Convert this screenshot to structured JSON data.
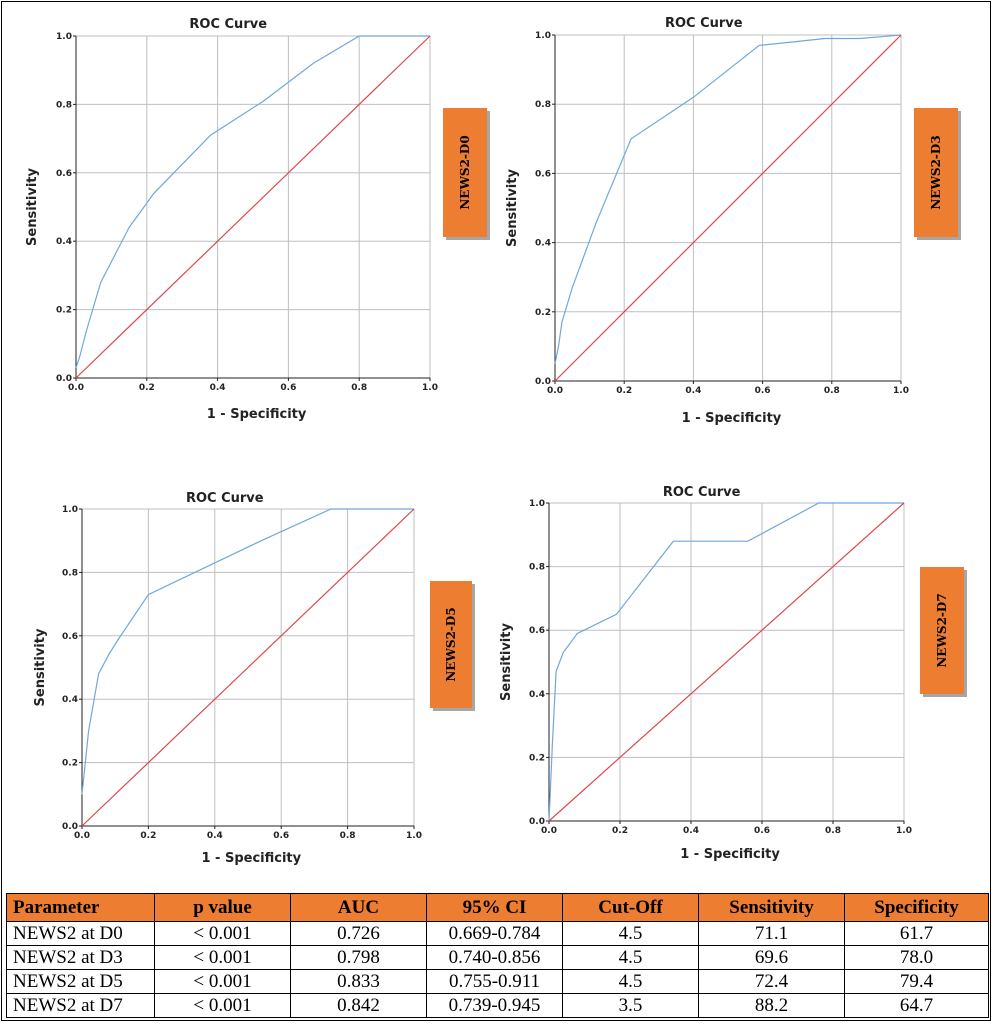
{
  "chart_data": [
    {
      "type": "line",
      "title": "ROC Curve",
      "xlabel": "1 - Specificity",
      "ylabel": "Sensitivity",
      "xlim": [
        0,
        1
      ],
      "ylim": [
        0,
        1
      ],
      "x_ticks": [
        "0.0",
        "0.2",
        "0.4",
        "0.6",
        "0.8",
        "1.0"
      ],
      "y_ticks": [
        "0.0",
        "0.2",
        "0.4",
        "0.6",
        "0.8",
        "1.0"
      ],
      "grid": true,
      "tag": "NEWS2-D0",
      "series": [
        {
          "color": "#6FA8DC",
          "points": [
            [
              0,
              0.03
            ],
            [
              0.01,
              0.06
            ],
            [
              0.03,
              0.14
            ],
            [
              0.07,
              0.28
            ],
            [
              0.15,
              0.44
            ],
            [
              0.22,
              0.54
            ],
            [
              0.38,
              0.71
            ],
            [
              0.53,
              0.81
            ],
            [
              0.67,
              0.92
            ],
            [
              0.8,
              1.0
            ],
            [
              1.0,
              1.0
            ]
          ]
        },
        {
          "color": "#E0474C",
          "points": [
            [
              0,
              0
            ],
            [
              1,
              1
            ]
          ]
        }
      ]
    },
    {
      "type": "line",
      "title": "ROC Curve",
      "xlabel": "1 - Specificity",
      "ylabel": "Sensitivity",
      "xlim": [
        0,
        1
      ],
      "ylim": [
        0,
        1
      ],
      "x_ticks": [
        "0.0",
        "0.2",
        "0.4",
        "0.6",
        "0.8",
        "1.0"
      ],
      "y_ticks": [
        "0.0",
        "0.2",
        "0.4",
        "0.6",
        "0.8",
        "1.0"
      ],
      "grid": true,
      "tag": "NEWS2-D3",
      "series": [
        {
          "color": "#6FA8DC",
          "points": [
            [
              0,
              0.05
            ],
            [
              0.01,
              0.1
            ],
            [
              0.02,
              0.17
            ],
            [
              0.05,
              0.27
            ],
            [
              0.12,
              0.46
            ],
            [
              0.22,
              0.7
            ],
            [
              0.4,
              0.82
            ],
            [
              0.59,
              0.97
            ],
            [
              0.69,
              0.98
            ],
            [
              0.78,
              0.99
            ],
            [
              0.88,
              0.99
            ],
            [
              1.0,
              1.0
            ]
          ]
        },
        {
          "color": "#E0474C",
          "points": [
            [
              0,
              0
            ],
            [
              1,
              1
            ]
          ]
        }
      ]
    },
    {
      "type": "line",
      "title": "ROC Curve",
      "xlabel": "1 - Specificity",
      "ylabel": "Sensitivity",
      "xlim": [
        0,
        1
      ],
      "ylim": [
        0,
        1
      ],
      "x_ticks": [
        "0.0",
        "0.2",
        "0.4",
        "0.6",
        "0.8",
        "1.0"
      ],
      "y_ticks": [
        "0.0",
        "0.2",
        "0.4",
        "0.6",
        "0.8",
        "1.0"
      ],
      "grid": true,
      "tag": "NEWS2-D5",
      "series": [
        {
          "color": "#6FA8DC",
          "points": [
            [
              0,
              0.1
            ],
            [
              0.02,
              0.3
            ],
            [
              0.05,
              0.48
            ],
            [
              0.08,
              0.54
            ],
            [
              0.11,
              0.59
            ],
            [
              0.2,
              0.73
            ],
            [
              0.32,
              0.79
            ],
            [
              0.54,
              0.9
            ],
            [
              0.75,
              1.0
            ],
            [
              1.0,
              1.0
            ]
          ]
        },
        {
          "color": "#E0474C",
          "points": [
            [
              0,
              0
            ],
            [
              1,
              1
            ]
          ]
        }
      ]
    },
    {
      "type": "line",
      "title": "ROC Curve",
      "xlabel": "1 - Specificity",
      "ylabel": "Sensitivity",
      "xlim": [
        0,
        1
      ],
      "ylim": [
        0,
        1
      ],
      "x_ticks": [
        "0.0",
        "0.2",
        "0.4",
        "0.6",
        "0.8",
        "1.0"
      ],
      "y_ticks": [
        "0.0",
        "0.2",
        "0.4",
        "0.6",
        "0.8",
        "1.0"
      ],
      "grid": true,
      "tag": "NEWS2-D7",
      "series": [
        {
          "color": "#6FA8DC",
          "points": [
            [
              0,
              0.0
            ],
            [
              0.01,
              0.25
            ],
            [
              0.02,
              0.47
            ],
            [
              0.04,
              0.53
            ],
            [
              0.08,
              0.59
            ],
            [
              0.19,
              0.65
            ],
            [
              0.35,
              0.88
            ],
            [
              0.56,
              0.88
            ],
            [
              0.76,
              1.0
            ],
            [
              1.0,
              1.0
            ]
          ]
        },
        {
          "color": "#E0474C",
          "points": [
            [
              0,
              0
            ],
            [
              1,
              1
            ]
          ]
        }
      ]
    }
  ],
  "colors": {
    "tag_fill": "#ED7D31",
    "tag_shadow": "#A6A6A6",
    "grid": "#BFBFBF",
    "header_fill": "#ED7D31"
  },
  "table": {
    "headers": [
      "Parameter",
      "p value",
      "AUC",
      "95% CI",
      "Cut-Off",
      "Sensitivity",
      "Specificity"
    ],
    "rows": [
      [
        "NEWS2 at D0",
        "< 0.001",
        "0.726",
        "0.669-0.784",
        "4.5",
        "71.1",
        "61.7"
      ],
      [
        "NEWS2 at D3",
        "< 0.001",
        "0.798",
        "0.740-0.856",
        "4.5",
        "69.6",
        "78.0"
      ],
      [
        "NEWS2 at D5",
        "< 0.001",
        "0.833",
        "0.755-0.911",
        "4.5",
        "72.4",
        "79.4"
      ],
      [
        "NEWS2 at D7",
        "< 0.001",
        "0.842",
        "0.739-0.945",
        "3.5",
        "88.2",
        "64.7"
      ]
    ]
  }
}
